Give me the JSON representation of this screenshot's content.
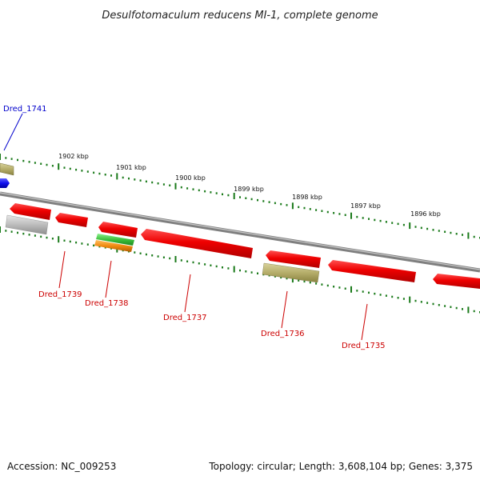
{
  "title": "Desulfotomaculum reducens MI-1, complete genome",
  "footer": {
    "accession": "Accession: NC_009253",
    "topology": "Topology: circular; Length: 3,608,104 bp; Genes: 3,375"
  },
  "colors": {
    "backbone": "#8c8c8c",
    "tick": "#1a7a1a",
    "gene_red": "#ee0000",
    "gene_olive": "#b5ad6a",
    "gene_gray": "#bcbcbc",
    "gene_green": "#3cc03c",
    "gene_orange": "#f08a10",
    "gene_blue": "#1010ee",
    "label_red": "#cc0000",
    "label_blue": "#0000cc"
  },
  "scale_labels": [
    "1902 kbp",
    "1901 kbp",
    "1900 kbp",
    "1899 kbp",
    "1898 kbp",
    "1897 kbp",
    "1896 kbp"
  ],
  "gene_labels": [
    {
      "text": "Dred_1741",
      "color": "blue"
    },
    {
      "text": "Dred_1739",
      "color": "red"
    },
    {
      "text": "Dred_1738",
      "color": "red"
    },
    {
      "text": "Dred_1737",
      "color": "red"
    },
    {
      "text": "Dred_1736",
      "color": "red"
    },
    {
      "text": "Dred_1735",
      "color": "red"
    }
  ]
}
